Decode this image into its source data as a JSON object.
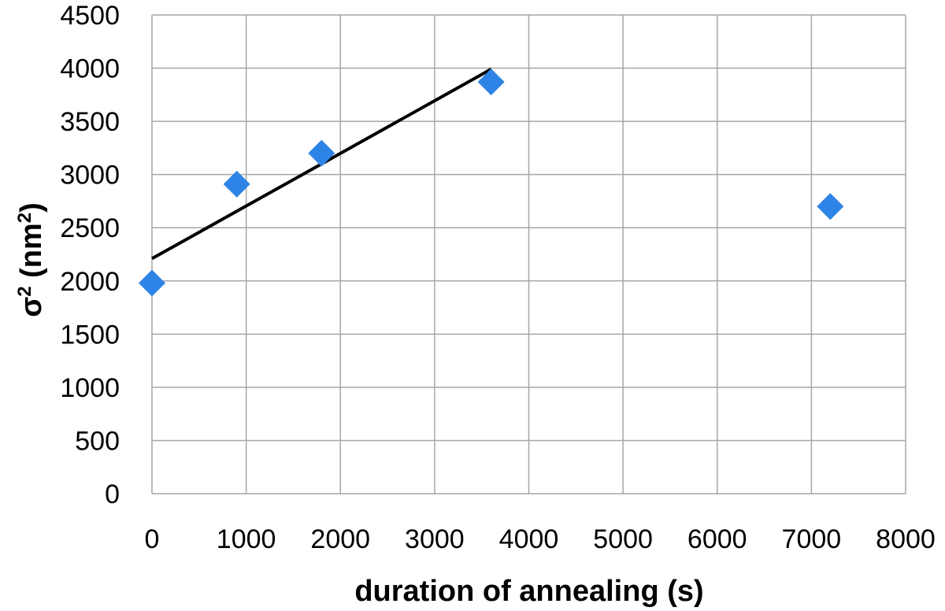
{
  "chart_data": {
    "type": "scatter",
    "title": "",
    "xlabel": "duration of annealing (s)",
    "ylabel_parts": [
      "σ",
      "2",
      " (nm",
      "2",
      ")"
    ],
    "xlim": [
      0,
      8000
    ],
    "ylim": [
      0,
      4500
    ],
    "x_ticks": [
      0,
      1000,
      2000,
      3000,
      4000,
      5000,
      6000,
      7000,
      8000
    ],
    "y_ticks": [
      0,
      500,
      1000,
      1500,
      2000,
      2500,
      3000,
      3500,
      4000,
      4500
    ],
    "grid": true,
    "legend": "none",
    "series": [
      {
        "marker": "diamond",
        "color": "#2e84e6",
        "points": [
          {
            "x": 0,
            "y": 1980
          },
          {
            "x": 900,
            "y": 2910
          },
          {
            "x": 1800,
            "y": 3200
          },
          {
            "x": 3600,
            "y": 3870
          },
          {
            "x": 7200,
            "y": 2700
          }
        ]
      }
    ],
    "trendline": {
      "type": "linear",
      "color": "#000000",
      "from": {
        "x": 0,
        "y": 2210
      },
      "to": {
        "x": 3600,
        "y": 3990
      }
    }
  }
}
